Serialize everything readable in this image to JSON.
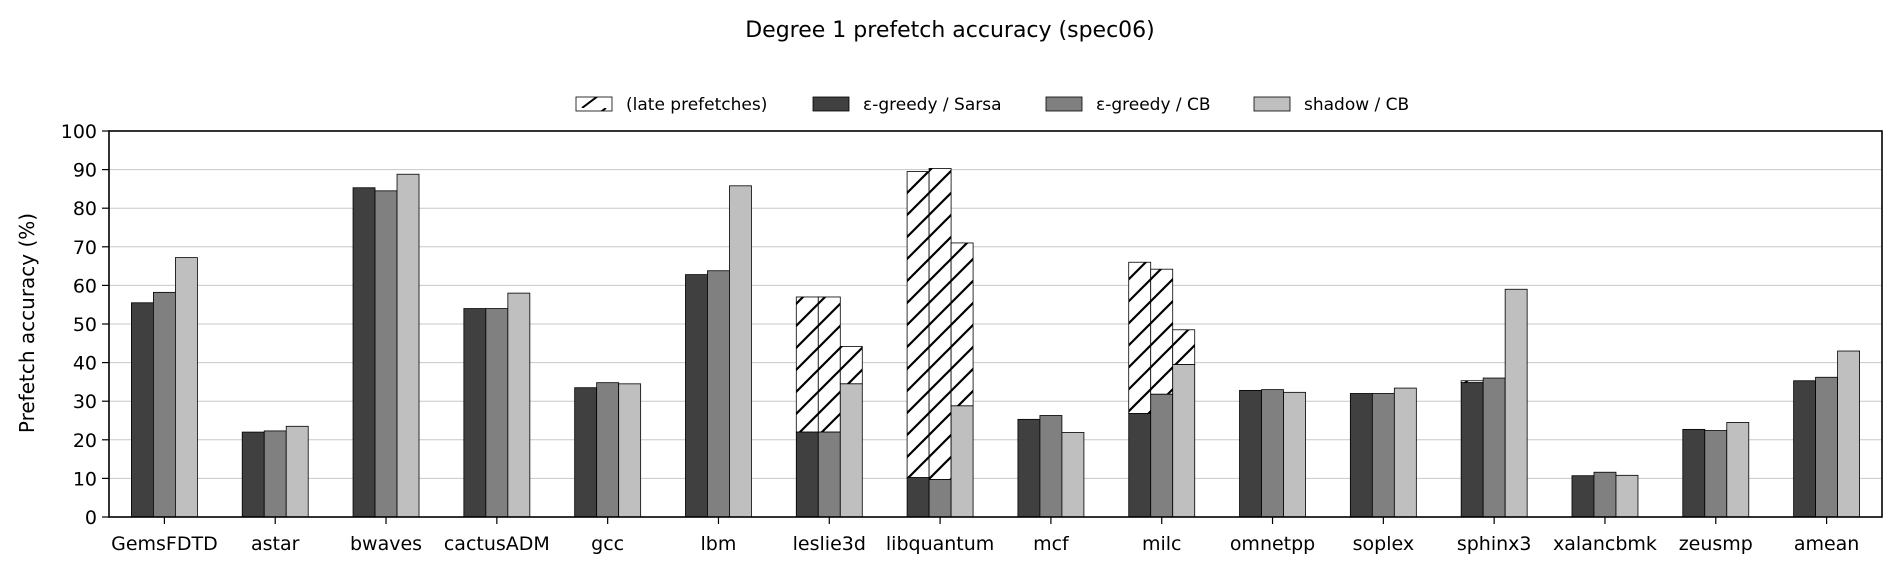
{
  "chart_data": {
    "type": "bar",
    "title": "Degree 1 prefetch accuracy (spec06)",
    "xlabel": "",
    "ylabel": "Prefetch accuracy (%)",
    "ylim": [
      0,
      100
    ],
    "yticks": [
      0,
      10,
      20,
      30,
      40,
      50,
      60,
      70,
      80,
      90,
      100
    ],
    "grid": "horizontal",
    "legend_position": "top-center",
    "categories": [
      "GemsFDTD",
      "astar",
      "bwaves",
      "cactusADM",
      "gcc",
      "lbm",
      "leslie3d",
      "libquantum",
      "mcf",
      "milc",
      "omnetpp",
      "soplex",
      "sphinx3",
      "xalancbmk",
      "zeusmp",
      "amean"
    ],
    "legend": [
      {
        "name": "(late prefetches)",
        "pattern": "hatch"
      },
      {
        "name": "ε-greedy / Sarsa",
        "color": "#404040"
      },
      {
        "name": "ε-greedy / CB",
        "color": "#808080"
      },
      {
        "name": "shadow / CB",
        "color": "#bfbfbf"
      }
    ],
    "series": [
      {
        "name": "ε-greedy / Sarsa",
        "color": "#404040",
        "values": [
          55.5,
          22,
          85.3,
          54,
          33.5,
          62.8,
          22,
          10.2,
          25.3,
          26.8,
          32.8,
          32,
          34.8,
          10.7,
          22.7,
          35.3
        ],
        "late_prefetch_totals": [
          null,
          null,
          null,
          null,
          null,
          null,
          57,
          89.5,
          null,
          66,
          null,
          null,
          35.3,
          null,
          null,
          null
        ]
      },
      {
        "name": "ε-greedy / CB",
        "color": "#808080",
        "values": [
          58.2,
          22.3,
          84.5,
          54,
          34.8,
          63.8,
          22,
          9.7,
          26.3,
          31.8,
          33,
          32,
          36,
          11.6,
          22.4,
          36.2
        ],
        "late_prefetch_totals": [
          null,
          null,
          null,
          null,
          null,
          null,
          57,
          90.3,
          null,
          64.2,
          null,
          null,
          null,
          null,
          null,
          null
        ]
      },
      {
        "name": "shadow / CB",
        "color": "#bfbfbf",
        "values": [
          67.2,
          23.5,
          88.8,
          58,
          34.5,
          85.8,
          34.5,
          28.8,
          21.9,
          39.5,
          32.3,
          33.4,
          59,
          10.8,
          24.5,
          43
        ],
        "late_prefetch_totals": [
          null,
          null,
          null,
          null,
          null,
          null,
          44.2,
          71,
          null,
          48.5,
          null,
          null,
          null,
          null,
          null,
          null
        ]
      }
    ]
  }
}
